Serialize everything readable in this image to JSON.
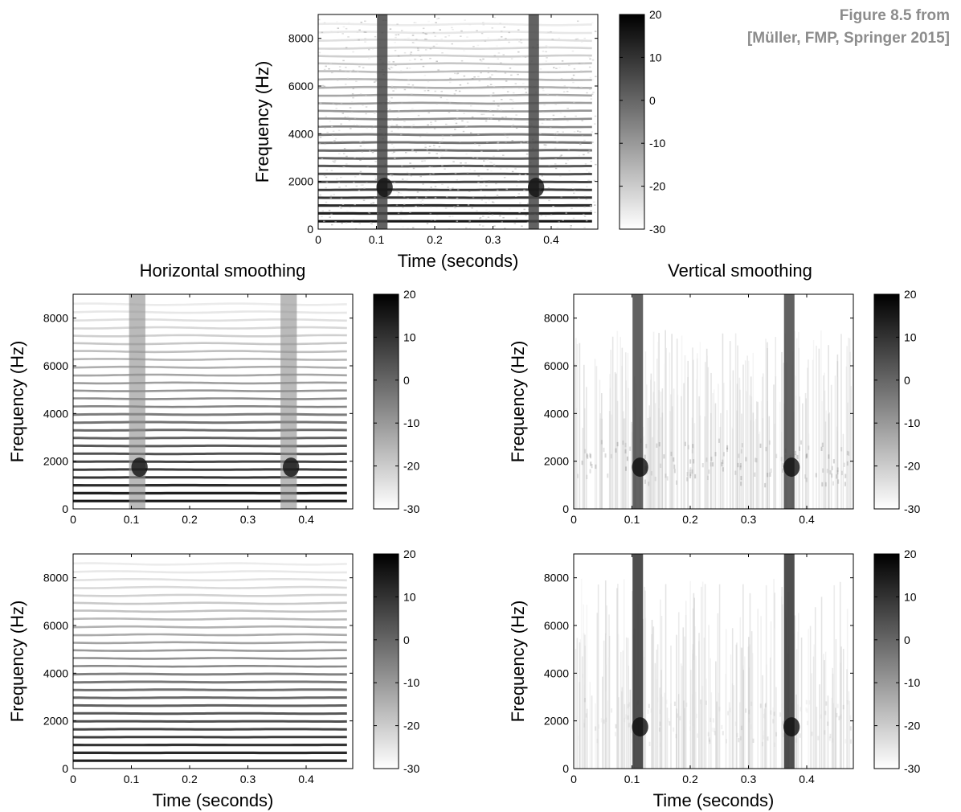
{
  "caption": {
    "line1": "Figure 8.5 from",
    "line2": "[Müller, FMP, Springer 2015]"
  },
  "column_titles": {
    "left": "Horizontal smoothing",
    "right": "Vertical smoothing"
  },
  "colors": {
    "map_low": "#ffffff",
    "map_high": "#000000",
    "axis": "#000000",
    "caption": "#8c8c8c"
  },
  "chart_data": [
    {
      "type": "heatmap",
      "panel": "original",
      "xlabel": "Time (seconds)",
      "ylabel": "Frequency (Hz)",
      "xlim": [
        0,
        0.48
      ],
      "ylim": [
        0,
        9000
      ],
      "xticks": [
        "0",
        "0.1",
        "0.2",
        "0.3",
        "0.4"
      ],
      "yticks": [
        "0",
        "2000",
        "4000",
        "6000",
        "8000"
      ],
      "colorbar": {
        "range": [
          -30,
          20
        ],
        "ticks": [
          "20",
          "10",
          "0",
          "-10",
          "-20",
          "-30"
        ]
      },
      "harmonic_fundamental_hz": 330,
      "onsets_s": [
        0.11,
        0.37
      ],
      "transient_energy_band_hz": [
        1400,
        2000
      ]
    },
    {
      "type": "heatmap",
      "panel": "horizontal smoothing",
      "xlabel": "",
      "ylabel": "Frequency (Hz)",
      "xlim": [
        0,
        0.48
      ],
      "ylim": [
        0,
        9000
      ],
      "xticks": [
        "0",
        "0.1",
        "0.2",
        "0.3",
        "0.4"
      ],
      "yticks": [
        "0",
        "2000",
        "4000",
        "6000",
        "8000"
      ],
      "colorbar": {
        "range": [
          -30,
          20
        ],
        "ticks": [
          "20",
          "10",
          "0",
          "-10",
          "-20",
          "-30"
        ]
      },
      "harmonic_fundamental_hz": 330,
      "onsets_s": [
        0.11,
        0.37
      ]
    },
    {
      "type": "heatmap",
      "panel": "vertical smoothing",
      "xlabel": "",
      "ylabel": "Frequency (Hz)",
      "xlim": [
        0,
        0.48
      ],
      "ylim": [
        0,
        9000
      ],
      "xticks": [
        "0",
        "0.1",
        "0.2",
        "0.3",
        "0.4"
      ],
      "yticks": [
        "0",
        "2000",
        "4000",
        "6000",
        "8000"
      ],
      "colorbar": {
        "range": [
          -30,
          20
        ],
        "ticks": [
          "20",
          "10",
          "0",
          "-10",
          "-20",
          "-30"
        ]
      },
      "onsets_s": [
        0.11,
        0.37
      ]
    },
    {
      "type": "heatmap",
      "panel": "horizontal smoothing result",
      "xlabel": "Time (seconds)",
      "ylabel": "Frequency (Hz)",
      "xlim": [
        0,
        0.48
      ],
      "ylim": [
        0,
        9000
      ],
      "xticks": [
        "0",
        "0.1",
        "0.2",
        "0.3",
        "0.4"
      ],
      "yticks": [
        "0",
        "2000",
        "4000",
        "6000",
        "8000"
      ],
      "colorbar": {
        "range": [
          -30,
          20
        ],
        "ticks": [
          "20",
          "10",
          "0",
          "-10",
          "-20",
          "-30"
        ]
      },
      "harmonic_fundamental_hz": 330
    },
    {
      "type": "heatmap",
      "panel": "vertical smoothing result",
      "xlabel": "Time (seconds)",
      "ylabel": "Frequency (Hz)",
      "xlim": [
        0,
        0.48
      ],
      "ylim": [
        0,
        9000
      ],
      "xticks": [
        "0",
        "0.1",
        "0.2",
        "0.3",
        "0.4"
      ],
      "yticks": [
        "0",
        "2000",
        "4000",
        "6000",
        "8000"
      ],
      "colorbar": {
        "range": [
          -30,
          20
        ],
        "ticks": [
          "20",
          "10",
          "0",
          "-10",
          "-20",
          "-30"
        ]
      },
      "onsets_s": [
        0.11,
        0.37
      ]
    }
  ]
}
